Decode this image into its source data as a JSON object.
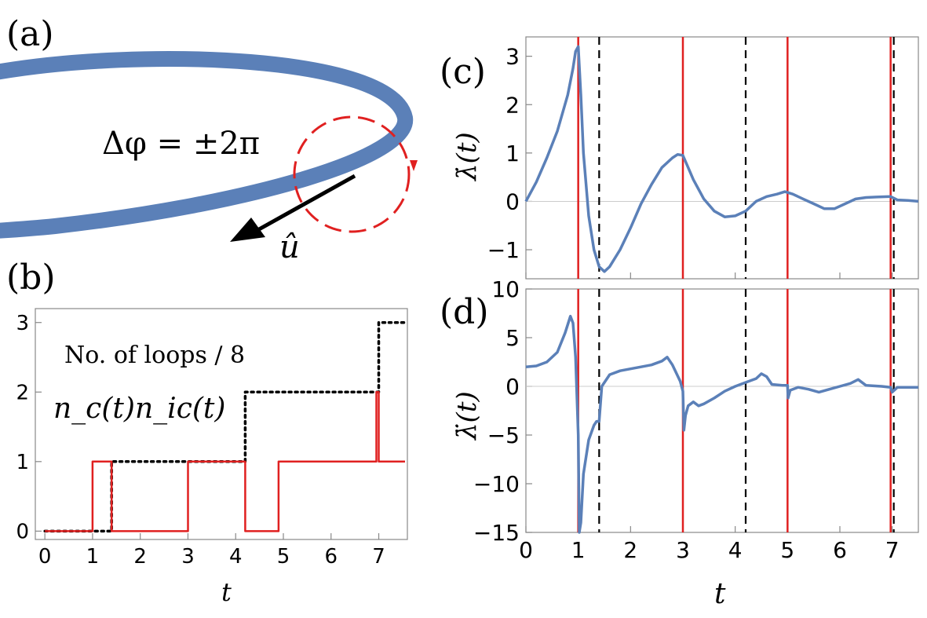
{
  "panel_a": {
    "label": "(a)",
    "equation": "Δφ = ±2π",
    "vector_label": "û",
    "colors": {
      "loop": "#5b80b8",
      "circle": "#e02020",
      "arrow": "#000000"
    }
  },
  "chart_data": [
    {
      "id": "b",
      "type": "line",
      "panel_label": "(b)",
      "xlabel": "t",
      "ylabel": "",
      "xlim": [
        -0.2,
        7.6
      ],
      "ylim": [
        -0.12,
        3.2
      ],
      "xticks": [
        0,
        1,
        2,
        3,
        4,
        5,
        6,
        7
      ],
      "yticks": [
        0,
        1,
        2,
        3
      ],
      "grid": false,
      "annotations": [
        {
          "text": "No. of loops / 8",
          "color": "#000000"
        }
      ],
      "series": [
        {
          "name": "n_c(t)",
          "color": "#000000",
          "style": "dotted",
          "x": [
            0,
            1.4,
            1.4,
            4.2,
            4.2,
            7.0,
            7.0,
            7.55
          ],
          "y": [
            0,
            0,
            1,
            1,
            2,
            2,
            3,
            3
          ]
        },
        {
          "name": "n_ic(t)",
          "color": "#e02020",
          "style": "solid",
          "x": [
            0,
            1.0,
            1.0,
            1.4,
            1.4,
            3.0,
            3.0,
            4.2,
            4.2,
            4.9,
            4.9,
            6.95,
            6.95,
            7.0,
            7.0,
            7.55
          ],
          "y": [
            0,
            0,
            1,
            1,
            0,
            0,
            1,
            1,
            0,
            0,
            1,
            1,
            2,
            2,
            1,
            1
          ]
        }
      ]
    },
    {
      "id": "c",
      "type": "line",
      "panel_label": "(c)",
      "ylabel": "λ̇(t)",
      "xlim": [
        0,
        7.5
      ],
      "ylim": [
        -1.6,
        3.4
      ],
      "xticks": [
        0,
        1,
        2,
        3,
        4,
        5,
        6,
        7
      ],
      "yticks": [
        -1,
        0,
        1,
        2,
        3
      ],
      "grid": false,
      "zero_line": true,
      "vlines_red": [
        1.0,
        3.0,
        5.0,
        6.97
      ],
      "vlines_dashed": [
        1.4,
        4.2,
        7.03
      ],
      "series": [
        {
          "color": "#5b80b8",
          "x": [
            0,
            0.2,
            0.4,
            0.6,
            0.8,
            0.9,
            0.95,
            1.0,
            1.05,
            1.1,
            1.2,
            1.3,
            1.4,
            1.5,
            1.6,
            1.8,
            2.0,
            2.2,
            2.4,
            2.6,
            2.8,
            2.9,
            3.0,
            3.1,
            3.2,
            3.4,
            3.6,
            3.8,
            4.0,
            4.2,
            4.4,
            4.6,
            4.8,
            4.95,
            5.1,
            5.3,
            5.5,
            5.7,
            5.9,
            6.1,
            6.3,
            6.5,
            6.7,
            6.97,
            7.1,
            7.3,
            7.5
          ],
          "y": [
            0,
            0.4,
            0.9,
            1.45,
            2.2,
            2.75,
            3.1,
            3.2,
            2.2,
            1.0,
            -0.3,
            -1.0,
            -1.35,
            -1.45,
            -1.35,
            -1.0,
            -0.55,
            -0.05,
            0.35,
            0.7,
            0.9,
            0.97,
            0.95,
            0.7,
            0.45,
            0.05,
            -0.2,
            -0.32,
            -0.3,
            -0.2,
            0.0,
            0.1,
            0.15,
            0.2,
            0.15,
            0.05,
            -0.05,
            -0.15,
            -0.15,
            -0.05,
            0.05,
            0.08,
            0.09,
            0.1,
            0.03,
            0.02,
            0.0
          ]
        }
      ]
    },
    {
      "id": "d",
      "type": "line",
      "panel_label": "(d)",
      "xlabel": "t",
      "ylabel": "λ̈(t)",
      "xlim": [
        0,
        7.5
      ],
      "ylim": [
        -15,
        10
      ],
      "xticks": [
        0,
        1,
        2,
        3,
        4,
        5,
        6,
        7
      ],
      "yticks": [
        -15,
        -10,
        -5,
        0,
        5,
        10
      ],
      "grid": false,
      "zero_line": true,
      "vlines_red": [
        1.0,
        3.0,
        5.0,
        6.97
      ],
      "vlines_dashed": [
        1.4,
        4.2,
        7.03
      ],
      "series": [
        {
          "color": "#5b80b8",
          "x": [
            0,
            0.2,
            0.4,
            0.6,
            0.75,
            0.85,
            0.9,
            0.95,
            1.0,
            1.02,
            1.05,
            1.1,
            1.2,
            1.3,
            1.35,
            1.4,
            1.45,
            1.6,
            1.8,
            2.0,
            2.2,
            2.4,
            2.6,
            2.7,
            2.8,
            2.95,
            3.0,
            3.02,
            3.05,
            3.1,
            3.2,
            3.3,
            3.4,
            3.6,
            3.8,
            4.0,
            4.2,
            4.4,
            4.5,
            4.6,
            4.7,
            4.9,
            5.0,
            5.01,
            5.05,
            5.2,
            5.4,
            5.6,
            5.8,
            6.0,
            6.2,
            6.35,
            6.5,
            6.8,
            6.97,
            7.0,
            7.1,
            7.3,
            7.5
          ],
          "y": [
            2,
            2.1,
            2.5,
            3.5,
            5.5,
            7.2,
            6.5,
            3.0,
            -5.0,
            -15.0,
            -14.0,
            -9.0,
            -5.5,
            -4.0,
            -3.6,
            -3.6,
            0.0,
            1.2,
            1.6,
            1.8,
            2.0,
            2.2,
            2.6,
            3.0,
            2.2,
            0.5,
            -0.5,
            -4.5,
            -3.0,
            -2.0,
            -1.6,
            -2.0,
            -1.8,
            -1.2,
            -0.5,
            0.0,
            0.4,
            0.8,
            1.3,
            1.0,
            0.2,
            0.1,
            0.1,
            -1.2,
            -0.4,
            -0.1,
            -0.3,
            -0.6,
            -0.3,
            0.0,
            0.3,
            0.7,
            0.1,
            0.0,
            -0.1,
            -0.6,
            -0.1,
            -0.1,
            -0.1
          ]
        }
      ]
    }
  ]
}
